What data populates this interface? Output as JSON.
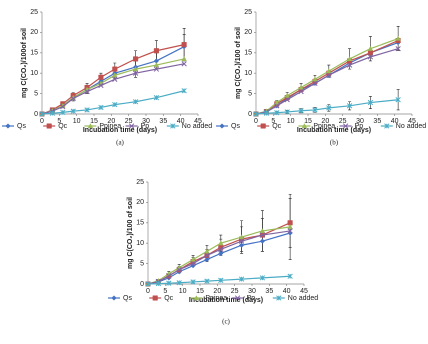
{
  "chart_data": [
    {
      "type": "line",
      "caption": "(a)",
      "xlabel": "Incubation time (days)",
      "ylabel": "mg C(CO₂)/100of soil",
      "x": [
        0,
        3,
        6,
        9,
        13,
        17,
        21,
        27,
        33,
        41
      ],
      "xlim": [
        0,
        45
      ],
      "xticks": [
        0,
        5,
        10,
        15,
        20,
        25,
        30,
        35,
        40,
        45
      ],
      "ylim": [
        0,
        25
      ],
      "yticks": [
        0,
        5,
        10,
        15,
        20,
        25
      ],
      "series": [
        {
          "name": "Qs",
          "color": "#4472c4",
          "marker": "diamond",
          "values": [
            0,
            0.8,
            2,
            4,
            6,
            8,
            10,
            11.5,
            13,
            16.5
          ],
          "errors": [
            0,
            0.3,
            0.5,
            0.8,
            1,
            1,
            1.2,
            2.5,
            2,
            3
          ]
        },
        {
          "name": "Qc",
          "color": "#c0504d",
          "marker": "square",
          "values": [
            0,
            1,
            2.5,
            4.5,
            6.5,
            9,
            11,
            13.5,
            15.5,
            17
          ],
          "errors": [
            0,
            0.3,
            0.5,
            0.7,
            1,
            1,
            1.5,
            2,
            2.5,
            4
          ]
        },
        {
          "name": "Ppinea",
          "color": "#9bbb59",
          "marker": "triangle",
          "values": [
            0,
            0.8,
            2,
            4,
            6,
            7.5,
            9.5,
            11,
            12,
            13.5
          ]
        },
        {
          "name": "Pp",
          "color": "#8064a2",
          "marker": "x",
          "values": [
            0,
            0.7,
            1.8,
            3.8,
            5.5,
            7,
            8.5,
            10,
            11,
            12.3
          ]
        },
        {
          "name": "No added",
          "color": "#4bacc6",
          "marker": "star",
          "values": [
            0,
            0.2,
            0.4,
            0.7,
            1,
            1.6,
            2.3,
            3,
            4,
            5.7
          ]
        }
      ]
    },
    {
      "type": "line",
      "caption": "(b)",
      "xlabel": "Incubation time (days)",
      "ylabel": "mg C(CO₂)/100 of soil",
      "x": [
        0,
        3,
        6,
        9,
        13,
        17,
        21,
        27,
        33,
        41
      ],
      "xlim": [
        0,
        45
      ],
      "xticks": [
        0,
        5,
        10,
        15,
        20,
        25,
        30,
        35,
        40,
        45
      ],
      "ylim": [
        0,
        25
      ],
      "yticks": [
        0,
        5,
        10,
        15,
        20,
        25
      ],
      "series": [
        {
          "name": "Qs",
          "color": "#4472c4",
          "marker": "diamond",
          "values": [
            0,
            0.5,
            2,
            3.8,
            6,
            7.5,
            9.5,
            12.5,
            15,
            17.5
          ]
        },
        {
          "name": "Qc",
          "color": "#c0504d",
          "marker": "square",
          "values": [
            0,
            0.6,
            2.5,
            4,
            6,
            8,
            10,
            13,
            15,
            18
          ]
        },
        {
          "name": "Ppinea",
          "color": "#9bbb59",
          "marker": "triangle",
          "values": [
            0,
            0.7,
            2.8,
            4.5,
            6.5,
            8.5,
            10.5,
            13.5,
            16,
            18.5
          ],
          "errors": [
            0,
            0.3,
            0.5,
            0.8,
            1,
            1,
            1.5,
            2.5,
            3,
            3
          ]
        },
        {
          "name": "Pp",
          "color": "#8064a2",
          "marker": "x",
          "values": [
            0,
            0.5,
            2,
            3.5,
            5.5,
            7.5,
            9.5,
            12,
            14,
            16
          ]
        },
        {
          "name": "No added",
          "color": "#4bacc6",
          "marker": "star",
          "values": [
            0,
            0.2,
            0.3,
            0.5,
            0.8,
            1,
            1.5,
            2,
            2.8,
            3.5
          ],
          "errors": [
            0,
            0.2,
            0.3,
            0.4,
            0.5,
            0.6,
            0.8,
            1,
            1.5,
            2.5
          ]
        }
      ]
    },
    {
      "type": "line",
      "caption": "(c)",
      "xlabel": "Incubation time (days)",
      "ylabel": "mg C(CO₂)/100 of soil",
      "x": [
        0,
        3,
        6,
        9,
        13,
        17,
        21,
        27,
        33,
        41
      ],
      "xlim": [
        0,
        45
      ],
      "xticks": [
        0,
        5,
        10,
        15,
        20,
        25,
        30,
        35,
        40,
        45
      ],
      "ylim": [
        0,
        25
      ],
      "yticks": [
        0,
        5,
        10,
        15,
        20,
        25
      ],
      "series": [
        {
          "name": "Qs",
          "color": "#4472c4",
          "marker": "diamond",
          "values": [
            0,
            0.5,
            1.5,
            3,
            4.5,
            6,
            7.5,
            9.5,
            10.5,
            12.5
          ]
        },
        {
          "name": "Qc",
          "color": "#c0504d",
          "marker": "square",
          "values": [
            0,
            0.6,
            2,
            3.5,
            5.5,
            7,
            9,
            11,
            12,
            15
          ],
          "errors": [
            0,
            0.3,
            0.5,
            0.8,
            1,
            1.5,
            2,
            3,
            4,
            6
          ]
        },
        {
          "name": "Ppinea",
          "color": "#9bbb59",
          "marker": "triangle",
          "values": [
            0,
            0.8,
            2.5,
            4,
            6,
            8,
            10,
            11.5,
            13,
            14
          ],
          "errors": [
            0,
            0.3,
            0.6,
            0.8,
            1,
            1.5,
            2,
            4,
            5,
            8
          ]
        },
        {
          "name": "Pp",
          "color": "#8064a2",
          "marker": "x",
          "values": [
            0,
            0.6,
            2,
            3.5,
            5,
            7,
            8.5,
            10.5,
            12,
            13
          ]
        },
        {
          "name": "No added",
          "color": "#4bacc6",
          "marker": "star",
          "values": [
            0,
            0.1,
            0.2,
            0.3,
            0.5,
            0.7,
            0.9,
            1.2,
            1.5,
            1.9
          ]
        }
      ]
    }
  ]
}
